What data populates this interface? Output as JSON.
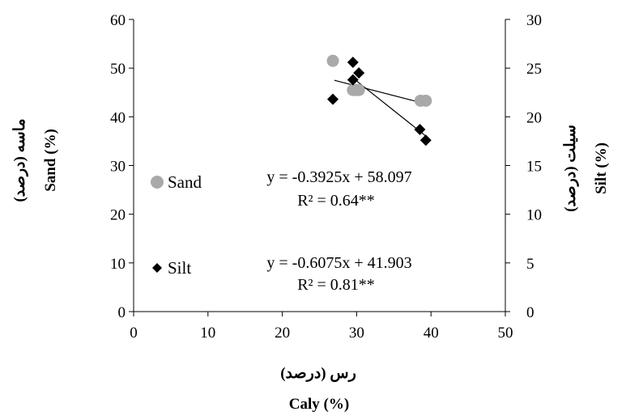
{
  "chart_data": {
    "type": "scatter",
    "x_axis": {
      "title": "Caly (%)",
      "title_fa": "رس (درصد)",
      "range": [
        0,
        50
      ],
      "ticks": [
        0,
        10,
        20,
        30,
        40,
        50
      ]
    },
    "y_axis_left": {
      "title": "Sand (%)",
      "title_fa": "ماسه (درصد)",
      "range": [
        0,
        60
      ],
      "ticks": [
        0,
        10,
        20,
        30,
        40,
        50,
        60
      ]
    },
    "y_axis_right": {
      "title": "Silt (%)",
      "title_fa": "سیلت (درصد)",
      "range": [
        0,
        30
      ],
      "ticks": [
        0,
        5,
        10,
        15,
        20,
        25,
        30
      ]
    },
    "series": [
      {
        "name": "Sand",
        "axis": "left",
        "marker": "circle",
        "color": "#a9a9a9",
        "points": [
          {
            "x": 26.8,
            "y": 51.5
          },
          {
            "x": 29.5,
            "y": 45.5
          },
          {
            "x": 30.0,
            "y": 45.5
          },
          {
            "x": 30.3,
            "y": 45.5
          },
          {
            "x": 38.6,
            "y": 43.3
          },
          {
            "x": 39.3,
            "y": 43.3
          }
        ],
        "trendline": {
          "slope": -0.3925,
          "intercept": 58.097,
          "x_range": [
            27.0,
            39.3
          ],
          "equation": "y = -0.3925x + 58.097",
          "r2": "R² = 0.64**"
        }
      },
      {
        "name": "Silt",
        "axis": "right",
        "marker": "diamond",
        "color": "#000000",
        "points": [
          {
            "x": 26.8,
            "y": 21.8
          },
          {
            "x": 29.5,
            "y": 25.6
          },
          {
            "x": 29.5,
            "y": 23.8
          },
          {
            "x": 30.3,
            "y": 24.5
          },
          {
            "x": 38.5,
            "y": 18.7
          },
          {
            "x": 39.3,
            "y": 17.6
          }
        ],
        "trendline": {
          "slope": -0.6075,
          "intercept": 41.903,
          "x_range": [
            29.5,
            39.3
          ],
          "equation": "y = -0.6075x + 41.903",
          "r2": "R² = 0.81**"
        }
      }
    ],
    "legend": [
      {
        "label": "Sand",
        "marker": "circle",
        "color": "#a9a9a9"
      },
      {
        "label": "Silt",
        "marker": "diamond",
        "color": "#000000"
      }
    ],
    "legend_position": "left-inside",
    "grid": false
  }
}
